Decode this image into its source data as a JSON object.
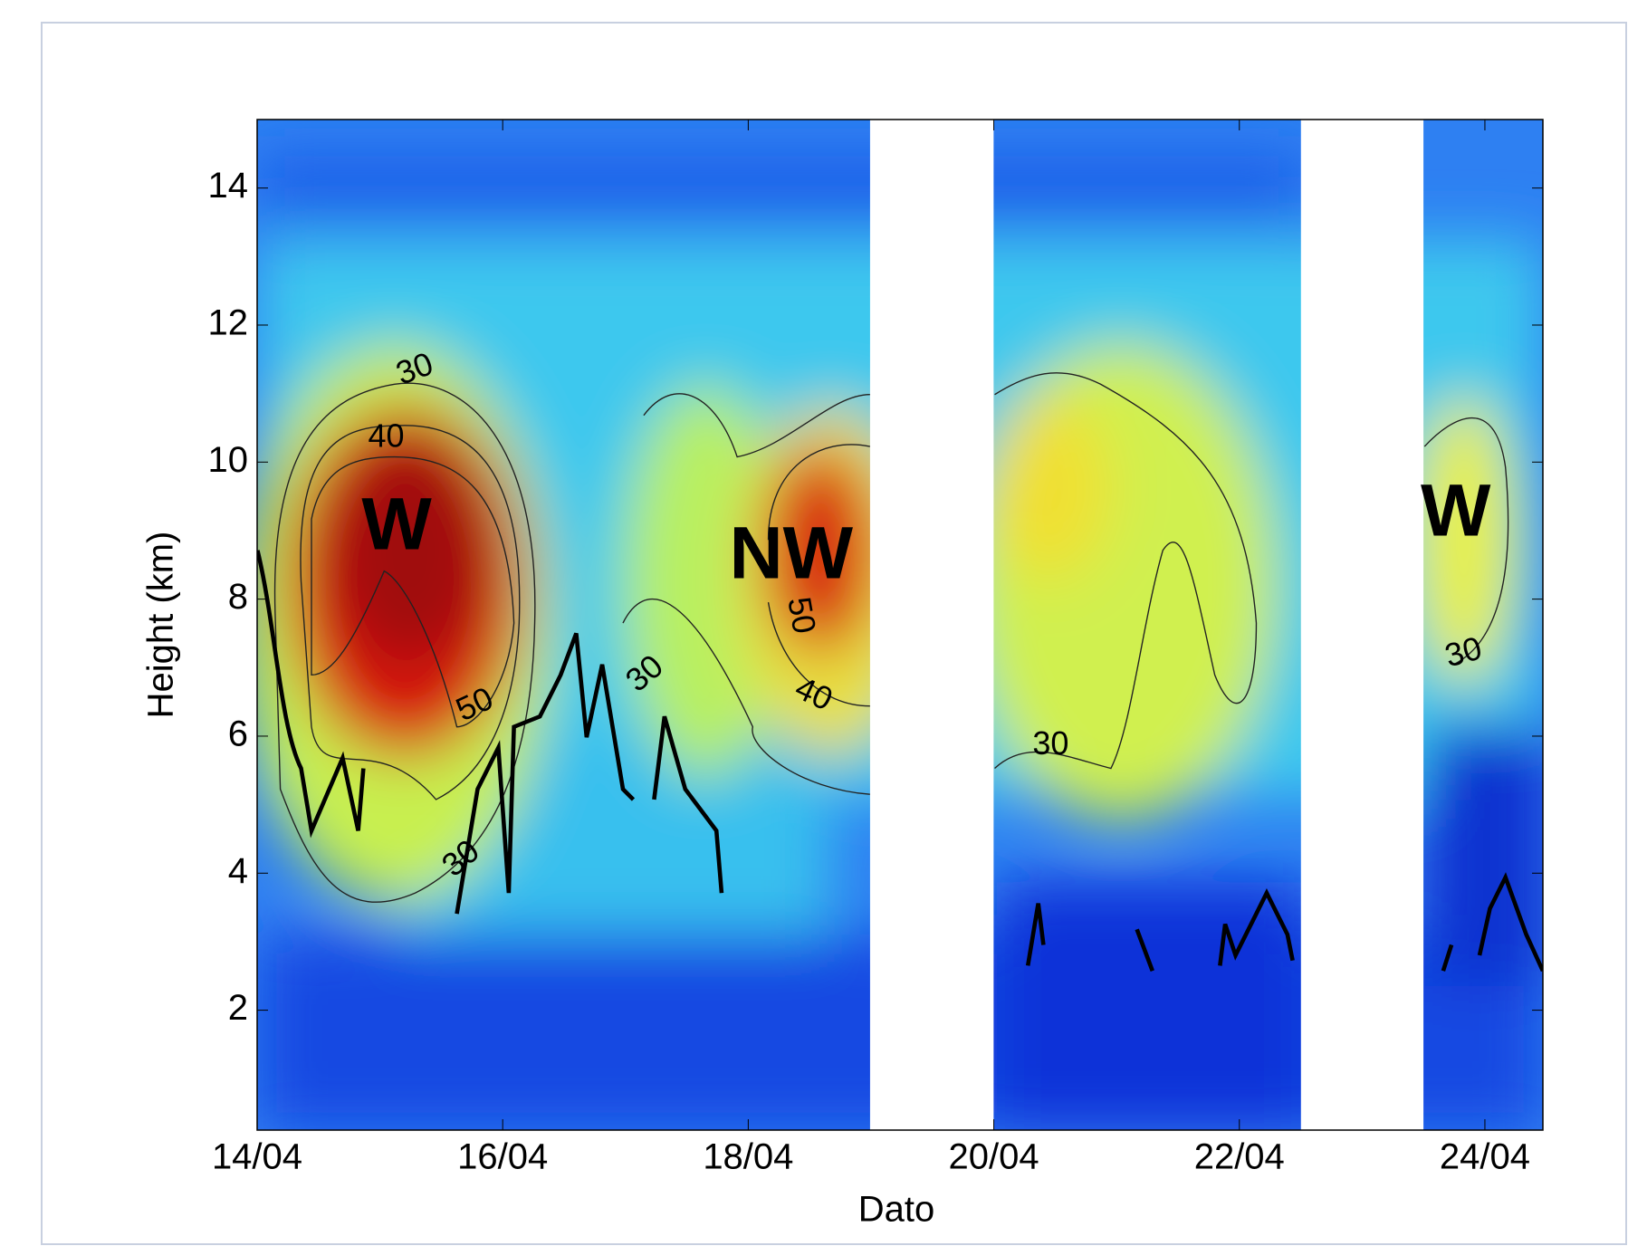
{
  "chart_data": {
    "type": "heatmap",
    "xlabel": "Dato",
    "ylabel": "Height (km)",
    "xticks": [
      "14/04",
      "16/04",
      "18/04",
      "20/04",
      "22/04",
      "24/04"
    ],
    "ylim": [
      0.25,
      15
    ],
    "yticks": [
      2,
      4,
      6,
      8,
      10,
      12,
      14
    ],
    "annotations": [
      "W",
      "NW",
      "W",
      "30",
      "40",
      "50",
      "30",
      "50",
      "40",
      "30",
      "30",
      "30"
    ]
  }
}
